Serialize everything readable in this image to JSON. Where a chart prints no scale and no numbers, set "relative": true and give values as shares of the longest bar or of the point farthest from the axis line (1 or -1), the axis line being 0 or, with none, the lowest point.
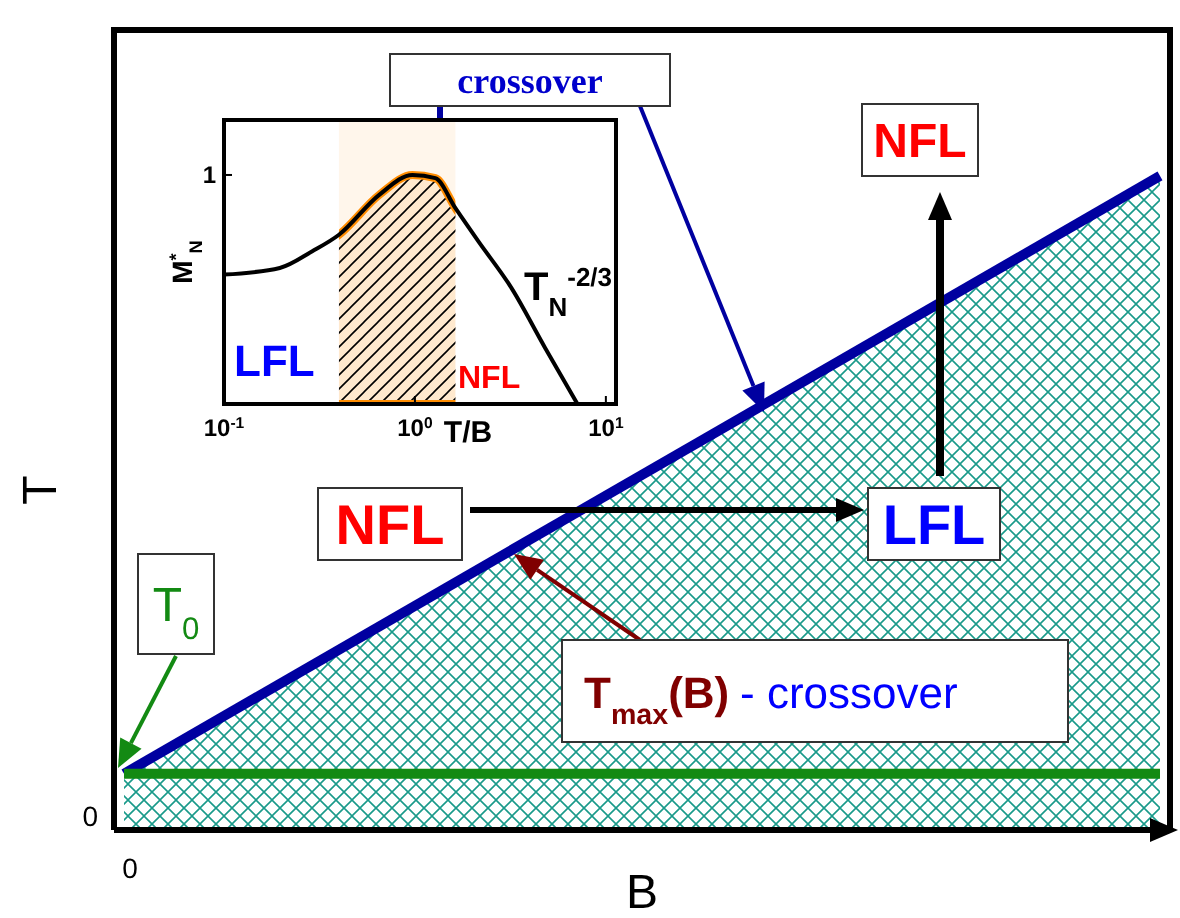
{
  "chart_data": [
    {
      "type": "line",
      "relative": true,
      "xlabel": "B",
      "ylabel": "T",
      "categories": [
        null,
        null
      ],
      "series": [
        {
          "type": "area",
          "color": "#0000a0",
          "values": [
            0.086,
            1
          ]
        },
        {
          "color": "#138a13",
          "values": [
            0.086,
            0.086
          ]
        }
      ],
      "annotations": [
        "NFL",
        "NFL",
        "LFL",
        "T$_{0}$",
        "T$_{max}$(B)",
        "- crossover",
        "crossover",
        "0",
        "0"
      ]
    },
    {
      "type": "line",
      "relative": true,
      "log": "x",
      "xlabel": "T/B",
      "ylabel": "M$^{*}$$_{N}$",
      "xlim": [
        0.1,
        11.3
      ],
      "xticks": [
        {
          "value": 0.1,
          "label": "10$^{-1}$"
        },
        {
          "value": 1,
          "label": "10$^{0}$"
        },
        {
          "value": 10,
          "label": "10$^{1}$"
        }
      ],
      "x": [
        0.1,
        0.196,
        0.29,
        0.4,
        0.65,
        0.97,
        1.28,
        1.63,
        2.15,
        3.2,
        4.8,
        7.1
      ],
      "series": [
        {
          "color": "#000000",
          "values": [
            0.565,
            0.594,
            0.667,
            0.739,
            0.913,
            1,
            0.986,
            0.855,
            0.71,
            0.507,
            0.246,
            0
          ]
        }
      ],
      "bands": [
        {
          "axis": "x",
          "from": 0.4,
          "to": 1.63,
          "color": "#ff8c00"
        }
      ],
      "annotations": [
        "LFL",
        "NFL",
        "T$_{N}$$^{-2/3}$",
        "1"
      ]
    }
  ]
}
